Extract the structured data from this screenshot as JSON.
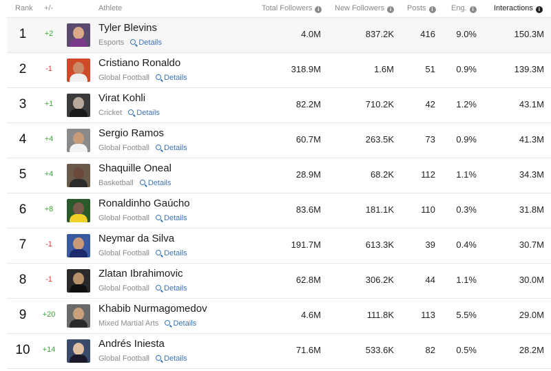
{
  "header": {
    "rank": "Rank",
    "change": "+/-",
    "athlete": "Athlete",
    "total_followers": "Total Followers",
    "new_followers": "New Followers",
    "posts": "Posts",
    "eng": "Eng.",
    "interactions": "Interactions",
    "info_glyph": "i"
  },
  "details_label": "Details",
  "rows": [
    {
      "rank": "1",
      "change": "+2",
      "name": "Tyler Blevins",
      "category": "Esports",
      "total": "4.0M",
      "new": "837.2K",
      "posts": "416",
      "eng": "9.0%",
      "interactions": "150.3M"
    },
    {
      "rank": "2",
      "change": "-1",
      "name": "Cristiano Ronaldo",
      "category": "Global Football",
      "total": "318.9M",
      "new": "1.6M",
      "posts": "51",
      "eng": "0.9%",
      "interactions": "139.3M"
    },
    {
      "rank": "3",
      "change": "+1",
      "name": "Virat Kohli",
      "category": "Cricket",
      "total": "82.2M",
      "new": "710.2K",
      "posts": "42",
      "eng": "1.2%",
      "interactions": "43.1M"
    },
    {
      "rank": "4",
      "change": "+4",
      "name": "Sergio Ramos",
      "category": "Global Football",
      "total": "60.7M",
      "new": "263.5K",
      "posts": "73",
      "eng": "0.9%",
      "interactions": "41.3M"
    },
    {
      "rank": "5",
      "change": "+4",
      "name": "Shaquille Oneal",
      "category": "Basketball",
      "total": "28.9M",
      "new": "68.2K",
      "posts": "112",
      "eng": "1.1%",
      "interactions": "34.3M"
    },
    {
      "rank": "6",
      "change": "+8",
      "name": "Ronaldinho Gaúcho",
      "category": "Global Football",
      "total": "83.6M",
      "new": "181.1K",
      "posts": "110",
      "eng": "0.3%",
      "interactions": "31.8M"
    },
    {
      "rank": "7",
      "change": "-1",
      "name": "Neymar da Silva",
      "category": "Global Football",
      "total": "191.7M",
      "new": "613.3K",
      "posts": "39",
      "eng": "0.4%",
      "interactions": "30.7M"
    },
    {
      "rank": "8",
      "change": "-1",
      "name": "Zlatan Ibrahimovic",
      "category": "Global Football",
      "total": "62.8M",
      "new": "306.2K",
      "posts": "44",
      "eng": "1.1%",
      "interactions": "30.0M"
    },
    {
      "rank": "9",
      "change": "+20",
      "name": "Khabib Nurmagomedov",
      "category": "Mixed Martial Arts",
      "total": "4.6M",
      "new": "111.8K",
      "posts": "113",
      "eng": "5.5%",
      "interactions": "29.0M"
    },
    {
      "rank": "10",
      "change": "+14",
      "name": "Andrés Iniesta",
      "category": "Global Football",
      "total": "71.6M",
      "new": "533.6K",
      "posts": "82",
      "eng": "0.5%",
      "interactions": "28.2M"
    }
  ],
  "avatar_colors": [
    {
      "bg": "#5a4a6e",
      "face": "#d9a989",
      "body": "#7a3a8a"
    },
    {
      "bg": "#d04a2a",
      "face": "#c98a6a",
      "body": "#f0f0f0"
    },
    {
      "bg": "#3a3a3a",
      "face": "#b8a89a",
      "body": "#1a1a1a"
    },
    {
      "bg": "#8a8a8a",
      "face": "#c79a7a",
      "body": "#f2f2f2"
    },
    {
      "bg": "#6a5a4a",
      "face": "#6a4a3a",
      "body": "#2a2a2a"
    },
    {
      "bg": "#2a5a2a",
      "face": "#7a5a4a",
      "body": "#f2d02a"
    },
    {
      "bg": "#3a5aa0",
      "face": "#c99a7a",
      "body": "#1a2a6a"
    },
    {
      "bg": "#2a2a2a",
      "face": "#b8906a",
      "body": "#101010"
    },
    {
      "bg": "#6a6a6a",
      "face": "#c9a07a",
      "body": "#2a2a2a"
    },
    {
      "bg": "#3a4a6a",
      "face": "#e0c0a0",
      "body": "#1a1a2a"
    }
  ]
}
